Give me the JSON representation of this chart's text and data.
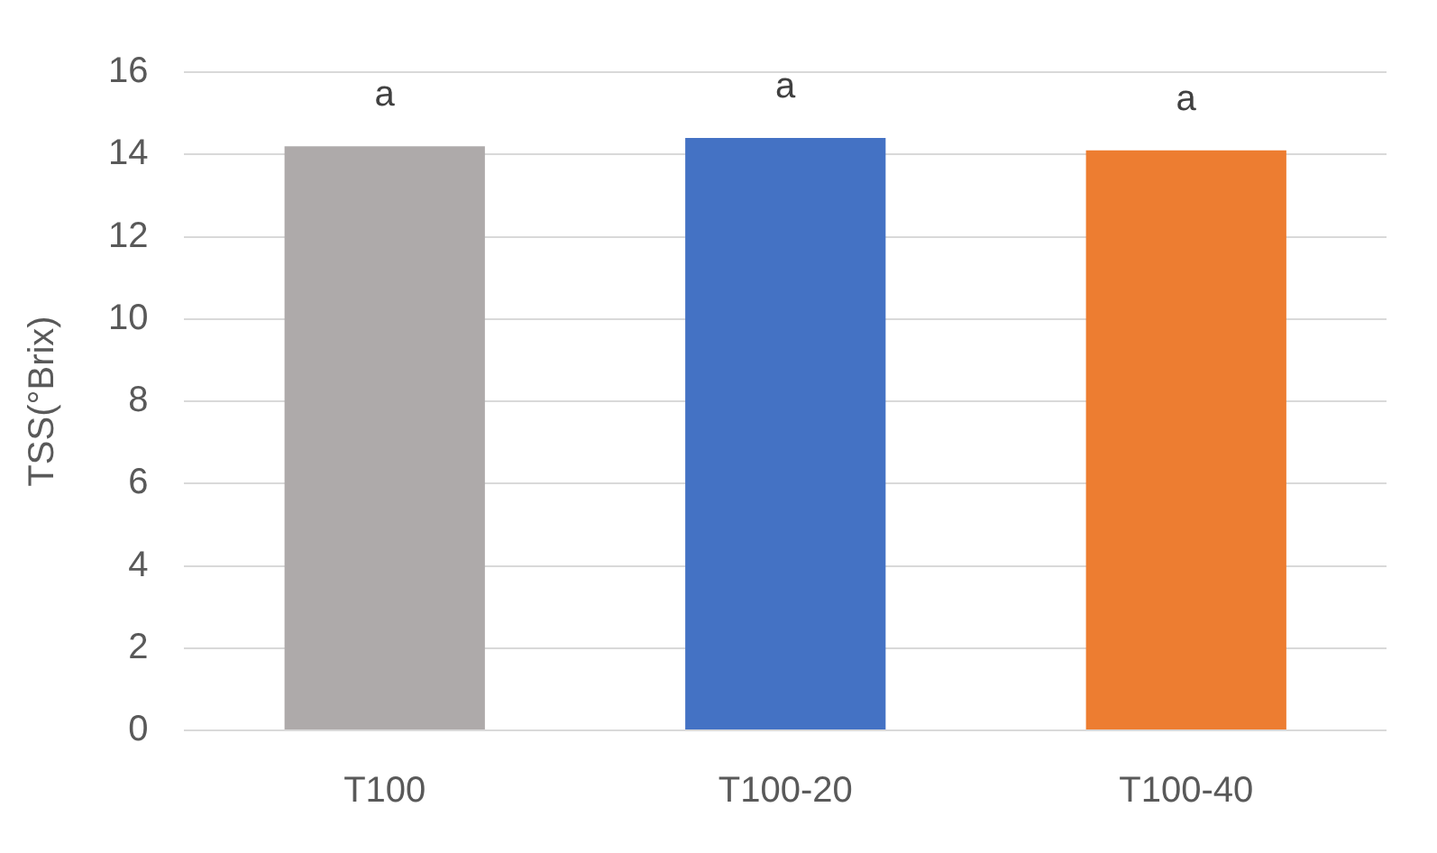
{
  "chart_data": {
    "type": "bar",
    "ylabel": "TSS(°Brix)",
    "categories": [
      "T100",
      "T100-20",
      "T100-40"
    ],
    "values": [
      14.2,
      14.4,
      14.1
    ],
    "colors": [
      "#aeaaaa",
      "#4472c4",
      "#ed7d31"
    ],
    "ylim": [
      0,
      16
    ],
    "yticks": [
      0,
      2,
      4,
      6,
      8,
      10,
      12,
      14,
      16
    ],
    "grid": "y",
    "legend": false,
    "annotations": [
      {
        "text": "a",
        "x": "T100",
        "y": 14.2
      },
      {
        "text": "a",
        "x": "T100-20",
        "y": 14.4
      },
      {
        "text": "a",
        "x": "T100-40",
        "y": 14.1
      }
    ]
  }
}
